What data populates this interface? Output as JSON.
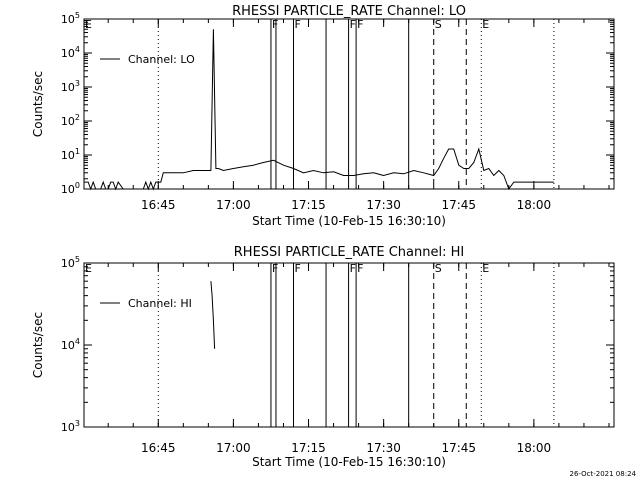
{
  "footer_date": "26-Oct-2021 08:24",
  "chart_data": [
    {
      "type": "line",
      "title": "RHESSI PARTICLE_RATE Channel: LO",
      "xlabel": "Start Time (10-Feb-15 16:30:10)",
      "ylabel": "Counts/sec",
      "yscale": "log",
      "xlim": [
        "16:30:10",
        "18:16:00"
      ],
      "ylim": [
        1,
        100000
      ],
      "x_ticks": [
        "16:45",
        "17:00",
        "17:15",
        "17:30",
        "17:45",
        "18:00"
      ],
      "y_ticks": [
        {
          "value": 1,
          "label": "10^0"
        },
        {
          "value": 10,
          "label": "10^1"
        },
        {
          "value": 100,
          "label": "10^2"
        },
        {
          "value": 1000,
          "label": "10^3"
        },
        {
          "value": 10000,
          "label": "10^4"
        },
        {
          "value": 100000,
          "label": "10^5"
        }
      ],
      "legend": "upper-left",
      "series": [
        {
          "name": "Channel: LO",
          "x": [
            "16:30:10",
            "16:31:00",
            "16:31:30",
            "16:32:00",
            "16:32:30",
            "16:33:00",
            "16:33:30",
            "16:34:00",
            "16:34:30",
            "16:35:00",
            "16:35:30",
            "16:36:00",
            "16:36:30",
            "16:37:00",
            "16:38:00",
            "16:39:00",
            "16:40:00",
            "16:41:00",
            "16:42:00",
            "16:42:30",
            "16:43:00",
            "16:43:30",
            "16:44:00",
            "16:44:30",
            "16:45:00",
            "16:45:30",
            "16:46:00",
            "16:48:00",
            "16:50:00",
            "16:52:00",
            "16:54:00",
            "16:55:30",
            "16:56:00",
            "16:56:30",
            "16:57:00",
            "16:58:00",
            "17:00:00",
            "17:02:00",
            "17:04:00",
            "17:06:00",
            "17:08:00",
            "17:10:00",
            "17:12:00",
            "17:14:00",
            "17:16:00",
            "17:18:00",
            "17:20:00",
            "17:22:00",
            "17:24:00",
            "17:26:00",
            "17:28:00",
            "17:30:00",
            "17:32:00",
            "17:34:00",
            "17:36:00",
            "17:38:00",
            "17:40:00",
            "17:41:00",
            "17:42:00",
            "17:43:00",
            "17:44:00",
            "17:45:00",
            "17:46:00",
            "17:47:00",
            "17:48:00",
            "17:49:00",
            "17:50:00",
            "17:51:00",
            "17:52:00",
            "17:53:00",
            "17:54:00",
            "17:55:00",
            "17:56:00",
            "17:58:00",
            "18:00:00",
            "18:02:00",
            "18:04:00"
          ],
          "y": [
            1.6,
            1.6,
            1,
            1.6,
            1,
            1,
            1,
            1.6,
            1,
            1,
            1.6,
            1.6,
            1,
            1.6,
            1,
            1,
            1,
            1,
            1,
            1.6,
            1,
            1.6,
            1,
            1.6,
            1.6,
            1.6,
            3,
            3,
            3,
            3.5,
            3.5,
            3.5,
            50000,
            4,
            4,
            3.5,
            4,
            4.5,
            5,
            6,
            7,
            5,
            4,
            3,
            3.5,
            3,
            3.2,
            2.5,
            2.5,
            2.8,
            3,
            2.5,
            3,
            2.8,
            3.5,
            3,
            2.5,
            4,
            8,
            15,
            15,
            5,
            4,
            4,
            6,
            15,
            3.5,
            4,
            2.5,
            3.5,
            2.5,
            1,
            1.6,
            1.6,
            1.6,
            1.6,
            1.6
          ]
        }
      ]
    },
    {
      "type": "line",
      "title": "RHESSI PARTICLE_RATE Channel: HI",
      "xlabel": "Start Time (10-Feb-15 16:30:10)",
      "ylabel": "Counts/sec",
      "yscale": "log",
      "xlim": [
        "16:30:10",
        "18:16:00"
      ],
      "ylim": [
        1000,
        100000
      ],
      "x_ticks": [
        "16:45",
        "17:00",
        "17:15",
        "17:30",
        "17:45",
        "18:00"
      ],
      "y_ticks": [
        {
          "value": 1000,
          "label": "10^3"
        },
        {
          "value": 10000,
          "label": "10^4"
        },
        {
          "value": 100000,
          "label": "10^5"
        }
      ],
      "legend": "upper-left",
      "series": [
        {
          "name": "Channel: HI",
          "x": [
            "16:55:30",
            "16:55:45",
            "16:56:00",
            "16:56:15"
          ],
          "y": [
            60000,
            40000,
            20000,
            9000
          ]
        }
      ]
    }
  ],
  "markers": {
    "solid": [
      {
        "time": "17:07:30",
        "label": "F"
      },
      {
        "time": "17:08:30",
        "label": ""
      },
      {
        "time": "17:12:00",
        "label": "F"
      },
      {
        "time": "17:18:30",
        "label": ""
      },
      {
        "time": "17:23:00",
        "label": "F"
      },
      {
        "time": "17:24:30",
        "label": "F"
      },
      {
        "time": "17:35:00",
        "label": ""
      }
    ],
    "dashed": [
      {
        "time": "17:40:00",
        "label": "S"
      },
      {
        "time": "17:46:30",
        "label": ""
      }
    ],
    "dotted": [
      {
        "time": "16:45:00",
        "label": ""
      },
      {
        "time": "17:49:30",
        "label": "E"
      },
      {
        "time": "18:04:00",
        "label": ""
      }
    ],
    "edge_label": "E"
  }
}
